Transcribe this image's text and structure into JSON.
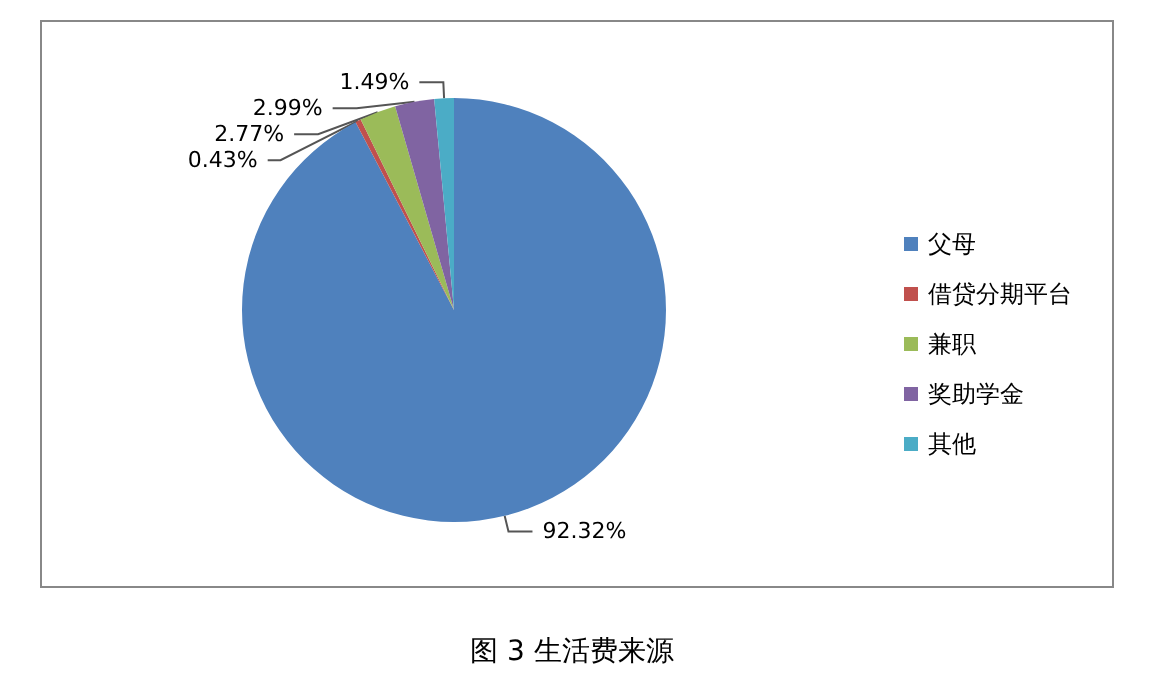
{
  "chart_data": {
    "type": "pie",
    "title": "图 3 生活费来源",
    "categories": [
      "父母",
      "借贷分期平台",
      "兼职",
      "奖助学金",
      "其他"
    ],
    "values": [
      92.32,
      0.43,
      2.77,
      2.99,
      1.49
    ],
    "value_labels": [
      "92.32%",
      "0.43%",
      "2.77%",
      "2.99%",
      "1.49%"
    ],
    "colors": [
      "#4f81bd",
      "#c0504d",
      "#9bbb59",
      "#8064a2",
      "#4bacc6"
    ],
    "legend": "right"
  }
}
